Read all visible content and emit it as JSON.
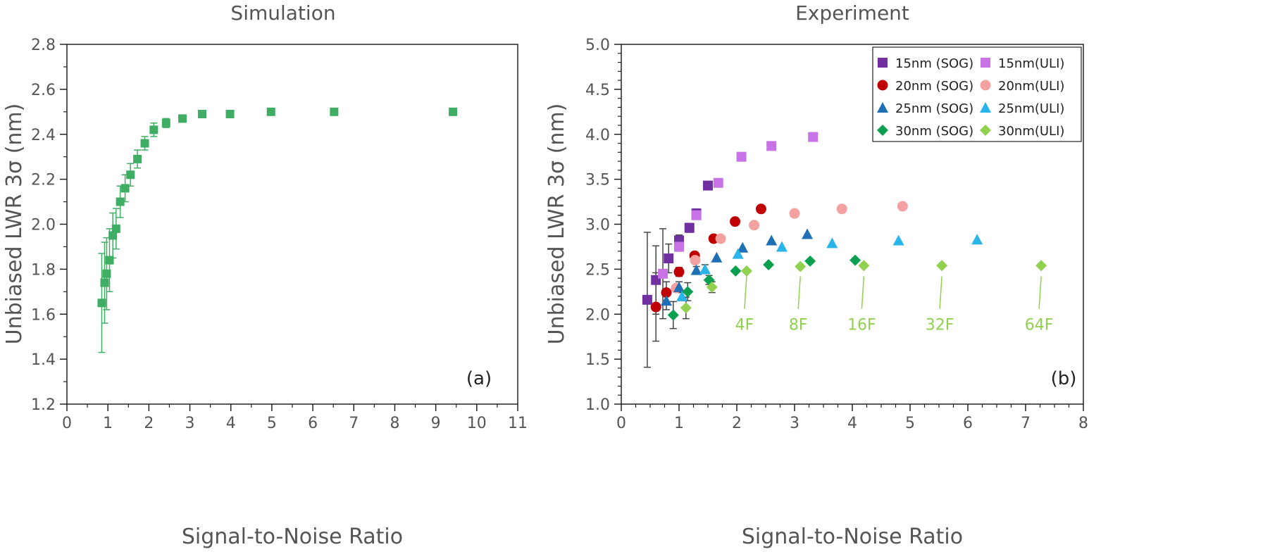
{
  "chart_data": [
    {
      "type": "scatter",
      "title": "Simulation",
      "xlabel": "Signal-to-Noise Ratio",
      "ylabel": "Unbiased LWR 3σ (nm)",
      "panel_label": "(a)",
      "xlim": [
        0,
        11
      ],
      "ylim": [
        1.2,
        2.8
      ],
      "xticks": [
        "0",
        "1",
        "2",
        "3",
        "4",
        "5",
        "6",
        "7",
        "8",
        "9",
        "10",
        "11"
      ],
      "yticks": [
        "1.2",
        "1.4",
        "1.6",
        "1.8",
        "2.0",
        "2.2",
        "2.4",
        "2.6",
        "2.8"
      ],
      "grid": false,
      "series": [
        {
          "color": "#3fae64",
          "marker": "square",
          "points": [
            {
              "x": 0.85,
              "y": 1.65,
              "err": 0.22
            },
            {
              "x": 0.92,
              "y": 1.74,
              "err": 0.18
            },
            {
              "x": 0.97,
              "y": 1.78,
              "err": 0.16
            },
            {
              "x": 1.04,
              "y": 1.84,
              "err": 0.14
            },
            {
              "x": 1.12,
              "y": 1.95,
              "err": 0.1
            },
            {
              "x": 1.2,
              "y": 1.98,
              "err": 0.09
            },
            {
              "x": 1.3,
              "y": 2.1,
              "err": 0.07
            },
            {
              "x": 1.42,
              "y": 2.16,
              "err": 0.06
            },
            {
              "x": 1.55,
              "y": 2.22,
              "err": 0.05
            },
            {
              "x": 1.72,
              "y": 2.29,
              "err": 0.04
            },
            {
              "x": 1.9,
              "y": 2.36,
              "err": 0.03
            },
            {
              "x": 2.12,
              "y": 2.42,
              "err": 0.03
            },
            {
              "x": 2.42,
              "y": 2.45,
              "err": 0.02
            },
            {
              "x": 2.82,
              "y": 2.47,
              "err": 0.01
            },
            {
              "x": 3.3,
              "y": 2.49,
              "err": 0.01
            },
            {
              "x": 3.98,
              "y": 2.49,
              "err": 0.01
            },
            {
              "x": 4.98,
              "y": 2.5,
              "err": 0.01
            },
            {
              "x": 6.52,
              "y": 2.5,
              "err": 0.01
            },
            {
              "x": 9.42,
              "y": 2.5,
              "err": 0.01
            }
          ]
        }
      ]
    },
    {
      "type": "scatter",
      "title": "Experiment",
      "xlabel": "Signal-to-Noise Ratio",
      "ylabel": "Unbiased LWR 3σ (nm)",
      "panel_label": "(b)",
      "xlim": [
        0,
        8
      ],
      "ylim": [
        1.0,
        5.0
      ],
      "xticks": [
        "0",
        "1",
        "2",
        "3",
        "4",
        "5",
        "6",
        "7",
        "8"
      ],
      "yticks": [
        "1.0",
        "1.5",
        "2.0",
        "2.5",
        "3.0",
        "3.5",
        "4.0",
        "4.5",
        "5.0"
      ],
      "grid": false,
      "legend_position": "top-right",
      "series": [
        {
          "name": "15nm (SOG)",
          "color": "#7030a0",
          "marker": "square",
          "points": [
            {
              "x": 0.45,
              "y": 2.16,
              "err": 0.75
            },
            {
              "x": 0.6,
              "y": 2.38,
              "err": 0.38
            },
            {
              "x": 0.82,
              "y": 2.62,
              "err": 0.16
            },
            {
              "x": 1.0,
              "y": 2.82,
              "err": 0.06
            },
            {
              "x": 1.18,
              "y": 2.96,
              "err": 0.05
            },
            {
              "x": 1.3,
              "y": 3.12,
              "err": 0.05
            },
            {
              "x": 1.5,
              "y": 3.43
            }
          ]
        },
        {
          "name": "15nm(ULI)",
          "color": "#c773e6",
          "marker": "square",
          "points": [
            {
              "x": 0.72,
              "y": 2.45,
              "err": 0.5
            },
            {
              "x": 1.0,
              "y": 2.75,
              "err": 0.05
            },
            {
              "x": 1.3,
              "y": 3.1
            },
            {
              "x": 1.68,
              "y": 3.46
            },
            {
              "x": 2.08,
              "y": 3.75
            },
            {
              "x": 2.6,
              "y": 3.87
            },
            {
              "x": 3.32,
              "y": 3.97
            }
          ]
        },
        {
          "name": "20nm (SOG)",
          "color": "#c00000",
          "marker": "circle",
          "points": [
            {
              "x": 0.6,
              "y": 2.08,
              "err": 0.38
            },
            {
              "x": 0.78,
              "y": 2.24,
              "err": 0.12
            },
            {
              "x": 1.0,
              "y": 2.47,
              "err": 0.05
            },
            {
              "x": 1.27,
              "y": 2.65,
              "err": 0.04
            },
            {
              "x": 1.6,
              "y": 2.84
            },
            {
              "x": 1.97,
              "y": 3.03
            },
            {
              "x": 2.42,
              "y": 3.17
            }
          ]
        },
        {
          "name": "20nm(ULI)",
          "color": "#f4a1a1",
          "marker": "circle",
          "points": [
            {
              "x": 0.95,
              "y": 2.29
            },
            {
              "x": 1.28,
              "y": 2.6
            },
            {
              "x": 1.72,
              "y": 2.84
            },
            {
              "x": 2.3,
              "y": 2.99
            },
            {
              "x": 3.0,
              "y": 3.12
            },
            {
              "x": 3.82,
              "y": 3.17
            },
            {
              "x": 4.87,
              "y": 3.2
            }
          ]
        },
        {
          "name": "25nm (SOG)",
          "color": "#1f6fb4",
          "marker": "triangle",
          "points": [
            {
              "x": 0.78,
              "y": 2.15,
              "err": 0.1
            },
            {
              "x": 1.0,
              "y": 2.3,
              "err": 0.06
            },
            {
              "x": 1.3,
              "y": 2.49,
              "err": 0.04
            },
            {
              "x": 1.65,
              "y": 2.63
            },
            {
              "x": 2.1,
              "y": 2.74
            },
            {
              "x": 2.6,
              "y": 2.82
            },
            {
              "x": 3.22,
              "y": 2.89
            }
          ]
        },
        {
          "name": "25nm(ULI)",
          "color": "#29b5ea",
          "marker": "triangle",
          "points": [
            {
              "x": 1.05,
              "y": 2.2,
              "err": 0.05
            },
            {
              "x": 1.45,
              "y": 2.5,
              "err": 0.05
            },
            {
              "x": 2.02,
              "y": 2.67
            },
            {
              "x": 2.78,
              "y": 2.75
            },
            {
              "x": 3.65,
              "y": 2.79
            },
            {
              "x": 4.8,
              "y": 2.82
            },
            {
              "x": 6.16,
              "y": 2.83
            }
          ]
        },
        {
          "name": "30nm (SOG)",
          "color": "#0aa04f",
          "marker": "diamond",
          "points": [
            {
              "x": 0.9,
              "y": 1.99,
              "err": 0.15
            },
            {
              "x": 1.15,
              "y": 2.25,
              "err": 0.1
            },
            {
              "x": 1.52,
              "y": 2.38,
              "err": 0.05
            },
            {
              "x": 1.98,
              "y": 2.48
            },
            {
              "x": 2.55,
              "y": 2.55
            },
            {
              "x": 3.27,
              "y": 2.59
            },
            {
              "x": 4.05,
              "y": 2.6
            }
          ]
        },
        {
          "name": "30nm(ULI)",
          "color": "#92d050",
          "marker": "diamond",
          "points": [
            {
              "x": 1.12,
              "y": 2.07,
              "err": 0.12
            },
            {
              "x": 1.57,
              "y": 2.3,
              "err": 0.06
            },
            {
              "x": 2.17,
              "y": 2.48
            },
            {
              "x": 3.1,
              "y": 2.53
            },
            {
              "x": 4.2,
              "y": 2.54
            },
            {
              "x": 5.55,
              "y": 2.54
            },
            {
              "x": 7.27,
              "y": 2.54
            }
          ]
        }
      ],
      "annotations": [
        {
          "text": "4F",
          "x": 2.17,
          "color": "#92d050"
        },
        {
          "text": "8F",
          "x": 3.1,
          "color": "#92d050"
        },
        {
          "text": "16F",
          "x": 4.2,
          "color": "#92d050"
        },
        {
          "text": "32F",
          "x": 5.55,
          "color": "#92d050"
        },
        {
          "text": "64F",
          "x": 7.27,
          "color": "#92d050"
        }
      ]
    }
  ]
}
